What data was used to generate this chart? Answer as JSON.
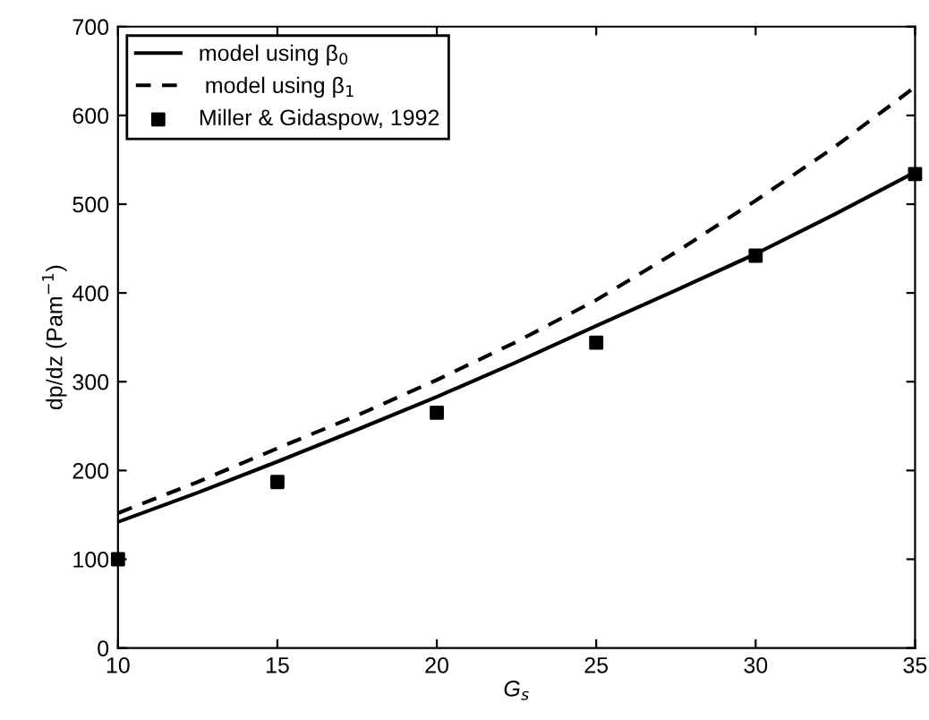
{
  "chart_data": {
    "type": "line",
    "xlabel": "G$_{s}$",
    "ylabel": "dp/dz (Pam$^{−1}$)",
    "xlim": [
      10,
      35
    ],
    "xticks": [
      10,
      15,
      20,
      25,
      30,
      35
    ],
    "ylim": [
      0,
      700
    ],
    "yticks": [
      0,
      100,
      200,
      300,
      400,
      500,
      600,
      700
    ],
    "grid": false,
    "legend": "top left",
    "series": [
      {
        "name": "model using β$_{0}$",
        "color": "#000000",
        "line_style": "solid",
        "marker": "none",
        "x": [
          10,
          12.5,
          15,
          17.5,
          20,
          22.5,
          25,
          27.5,
          30,
          32.5,
          35
        ],
        "values": [
          142,
          175,
          210,
          246,
          283,
          322,
          363,
          403,
          444,
          489,
          536
        ]
      },
      {
        "name": " model using β$_{1}$",
        "color": "#000000",
        "line_style": "dashed",
        "marker": "none",
        "x": [
          10,
          12.5,
          15,
          17.5,
          20,
          22.5,
          25,
          27.5,
          30,
          32.5,
          35
        ],
        "values": [
          152,
          187,
          225,
          262,
          302,
          345,
          392,
          446,
          504,
          565,
          632
        ]
      },
      {
        "name": "Miller & Gidaspow, 1992",
        "type": "scatter",
        "color": "#000000",
        "marker": "square",
        "x": [
          10,
          15,
          20,
          25,
          30,
          35
        ],
        "values": [
          100,
          187,
          265,
          344,
          442,
          534
        ]
      }
    ]
  }
}
